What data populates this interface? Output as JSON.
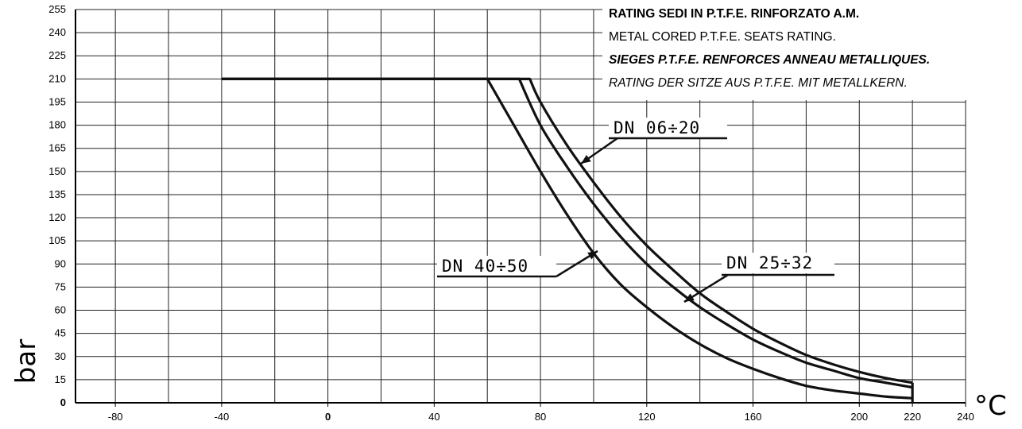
{
  "chart_data": {
    "type": "line",
    "title_lines": [
      "RATING SEDI IN P.T.F.E. RINFORZATO A.M.",
      "METAL CORED P.T.F.E. SEATS RATING.",
      "SIEGES P.T.F.E. RENFORCES ANNEAU METALLIQUES.",
      "RATING DER SITZE AUS P.T.F.E. MIT METALLKERN."
    ],
    "xlabel": "°C",
    "ylabel": "bar",
    "xlim": [
      -95,
      240
    ],
    "ylim": [
      0,
      255
    ],
    "x_ticks": [
      "-80",
      "-40",
      "0",
      "40",
      "80",
      "120",
      "160",
      "200",
      "220",
      "240"
    ],
    "x_tick_values": [
      -80,
      -40,
      0,
      40,
      80,
      120,
      160,
      200,
      220,
      240
    ],
    "y_ticks": [
      "0",
      "15",
      "30",
      "45",
      "60",
      "75",
      "90",
      "105",
      "120",
      "135",
      "150",
      "165",
      "180",
      "195",
      "210",
      "225",
      "240",
      "255"
    ],
    "y_tick_values": [
      0,
      15,
      30,
      45,
      60,
      75,
      90,
      105,
      120,
      135,
      150,
      165,
      180,
      195,
      210,
      225,
      240,
      255
    ],
    "grid": true,
    "series": [
      {
        "name": "DN 06÷20",
        "x": [
          -40,
          76,
          80,
          90,
          100,
          110,
          120,
          130,
          140,
          150,
          160,
          170,
          180,
          190,
          200,
          210,
          220
        ],
        "y": [
          210,
          210,
          195,
          167,
          143,
          121,
          102,
          86,
          71,
          59,
          48,
          39,
          31,
          25,
          20,
          16,
          13
        ]
      },
      {
        "name": "DN 25÷32",
        "x": [
          -40,
          72,
          80,
          90,
          100,
          110,
          120,
          130,
          140,
          150,
          160,
          170,
          180,
          190,
          200,
          210,
          220
        ],
        "y": [
          210,
          210,
          180,
          153,
          129,
          108,
          90,
          75,
          62,
          51,
          41,
          33,
          26,
          21,
          16,
          13,
          10
        ]
      },
      {
        "name": "DN 40÷50",
        "x": [
          -40,
          60,
          70,
          80,
          90,
          100,
          110,
          120,
          130,
          140,
          150,
          160,
          170,
          180,
          190,
          200,
          210,
          220
        ],
        "y": [
          210,
          210,
          180,
          150,
          122,
          97,
          77,
          62,
          49,
          38,
          29,
          22,
          16,
          11,
          8,
          6,
          4,
          3
        ]
      }
    ]
  }
}
